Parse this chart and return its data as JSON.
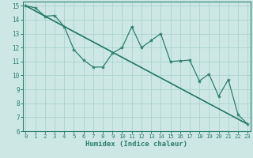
{
  "title": "",
  "xlabel": "Humidex (Indice chaleur)",
  "background_color": "#cde8e4",
  "line_color": "#2d7d6e",
  "xlim": [
    -0.3,
    23.3
  ],
  "ylim": [
    6,
    15.3
  ],
  "xticks": [
    0,
    1,
    2,
    3,
    4,
    5,
    6,
    7,
    8,
    9,
    10,
    11,
    12,
    13,
    14,
    15,
    16,
    17,
    18,
    19,
    20,
    21,
    22,
    23
  ],
  "yticks": [
    6,
    7,
    8,
    9,
    10,
    11,
    12,
    13,
    14,
    15
  ],
  "grid_color": "#aad4cc",
  "series1_x": [
    0,
    1,
    2,
    3,
    4,
    5,
    6,
    7,
    8,
    9,
    10,
    11,
    12,
    13,
    14,
    15,
    16,
    17,
    18,
    19,
    20,
    21,
    22,
    23
  ],
  "series1_y": [
    15.0,
    14.85,
    14.25,
    14.3,
    13.5,
    11.85,
    11.1,
    10.6,
    10.6,
    11.6,
    12.0,
    13.5,
    12.0,
    12.5,
    13.0,
    11.0,
    11.05,
    11.1,
    9.6,
    10.1,
    8.5,
    9.7,
    7.2,
    6.5
  ],
  "series2_x": [
    0,
    23
  ],
  "series2_y": [
    15.0,
    6.5
  ],
  "series3_x": [
    0,
    2,
    23
  ],
  "series3_y": [
    15.0,
    14.25,
    6.5
  ],
  "series4_x": [
    0,
    4,
    23
  ],
  "series4_y": [
    15.0,
    13.5,
    6.5
  ]
}
